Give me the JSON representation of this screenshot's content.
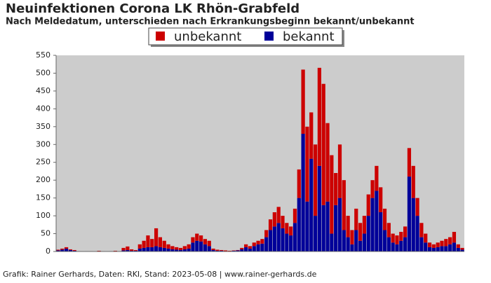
{
  "chart_data": {
    "type": "stacked-bar",
    "title": "Neuinfektionen Corona LK Rhön-Grabfeld",
    "subtitle": "Nach Meldedatum, unterschieden nach Erkrankungsbeginn bekannt/unbekannt",
    "footer": "Grafik: Rainer Gerhards, Daten: RKI, Stand: 2023-05-08 | www.rainer-gerhards.de",
    "categories": [
      null,
      null,
      null,
      null,
      null,
      null,
      null,
      null,
      null,
      null,
      null,
      null,
      null,
      null,
      null,
      null,
      null,
      null,
      null,
      null,
      null,
      null,
      null,
      null,
      null,
      null,
      null,
      null,
      null,
      null,
      null,
      null,
      null,
      null,
      null,
      null,
      null,
      null,
      null,
      null,
      null,
      null,
      null,
      null,
      null,
      null,
      null,
      null,
      null,
      null,
      null,
      null,
      null,
      null,
      null,
      null,
      null,
      null,
      null,
      null,
      null,
      null,
      null,
      null,
      null,
      null,
      null,
      null,
      null,
      null,
      null,
      null,
      null,
      null,
      null,
      null,
      null,
      null,
      null,
      null,
      null,
      null,
      null,
      null,
      null,
      null,
      null,
      null,
      null,
      null,
      null,
      null,
      null,
      null,
      null,
      null,
      null,
      null,
      null,
      null
    ],
    "series": [
      {
        "name": "bekannt",
        "color": "#000099",
        "values": [
          3,
          5,
          8,
          4,
          2,
          1,
          0,
          1,
          0,
          0,
          1,
          0,
          0,
          1,
          1,
          0,
          3,
          4,
          2,
          2,
          8,
          10,
          12,
          12,
          15,
          12,
          10,
          8,
          6,
          5,
          4,
          6,
          8,
          25,
          30,
          28,
          20,
          15,
          4,
          2,
          2,
          1,
          1,
          2,
          3,
          6,
          12,
          8,
          15,
          20,
          22,
          40,
          60,
          70,
          80,
          65,
          50,
          45,
          80,
          150,
          330,
          140,
          260,
          100,
          240,
          130,
          140,
          50,
          130,
          150,
          60,
          40,
          20,
          60,
          30,
          50,
          100,
          150,
          170,
          110,
          60,
          40,
          25,
          20,
          30,
          40,
          210,
          150,
          100,
          40,
          25,
          12,
          10,
          12,
          15,
          15,
          20,
          25,
          10,
          5
        ]
      },
      {
        "name": "unbekannt",
        "color": "#cc0000",
        "values": [
          2,
          3,
          4,
          2,
          2,
          0,
          0,
          0,
          1,
          0,
          1,
          1,
          0,
          0,
          1,
          1,
          7,
          10,
          4,
          2,
          12,
          20,
          33,
          23,
          50,
          28,
          20,
          12,
          9,
          7,
          6,
          9,
          12,
          15,
          20,
          17,
          15,
          15,
          4,
          3,
          2,
          2,
          1,
          1,
          1,
          4,
          8,
          7,
          10,
          10,
          13,
          20,
          30,
          40,
          45,
          35,
          30,
          25,
          40,
          80,
          180,
          210,
          130,
          200,
          275,
          340,
          220,
          220,
          90,
          150,
          140,
          60,
          40,
          60,
          50,
          50,
          60,
          50,
          70,
          70,
          60,
          40,
          25,
          25,
          25,
          30,
          80,
          90,
          50,
          40,
          25,
          13,
          10,
          13,
          15,
          20,
          20,
          30,
          10,
          5
        ]
      }
    ],
    "legend_order": [
      "unbekannt",
      "bekannt"
    ],
    "ylim": [
      0,
      550
    ],
    "yticks": [
      0,
      50,
      100,
      150,
      200,
      250,
      300,
      350,
      400,
      450,
      500,
      550
    ]
  }
}
